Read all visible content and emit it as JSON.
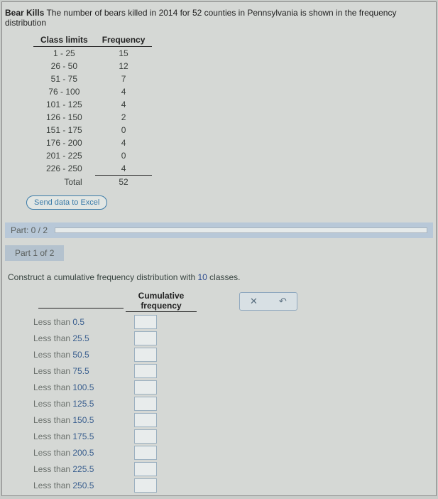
{
  "title": {
    "bold": "Bear Kills",
    "rest_a": " The number of bears killed in ",
    "year": "2014",
    "rest_b": " for ",
    "counties": "52",
    "rest_c": " counties in Pennsylvania is shown in the frequency distribution"
  },
  "freq_table": {
    "headers": [
      "Class limits",
      "Frequency"
    ],
    "rows": [
      {
        "limits": "1 - 25",
        "freq": "15"
      },
      {
        "limits": "26 - 50",
        "freq": "12"
      },
      {
        "limits": "51 - 75",
        "freq": "7"
      },
      {
        "limits": "76 - 100",
        "freq": "4"
      },
      {
        "limits": "101 - 125",
        "freq": "4"
      },
      {
        "limits": "126 - 150",
        "freq": "2"
      },
      {
        "limits": "151 - 175",
        "freq": "0"
      },
      {
        "limits": "176 - 200",
        "freq": "4"
      },
      {
        "limits": "201 - 225",
        "freq": "0"
      },
      {
        "limits": "226 - 250",
        "freq": "4"
      }
    ],
    "total_label": "Total",
    "total_value": "52"
  },
  "send_button": "Send data to Excel",
  "part_indicator": "Part: 0 / 2",
  "part_label": "Part 1 of 2",
  "instruction": {
    "text_a": "Construct a cumulative frequency distribution with ",
    "classes": "10",
    "text_b": " classes."
  },
  "cum_table": {
    "header": "Cumulative frequency",
    "rows": [
      {
        "prefix": "Less than ",
        "val": "0.5"
      },
      {
        "prefix": "Less than ",
        "val": "25.5"
      },
      {
        "prefix": "Less than ",
        "val": "50.5"
      },
      {
        "prefix": "Less than ",
        "val": "75.5"
      },
      {
        "prefix": "Less than ",
        "val": "100.5"
      },
      {
        "prefix": "Less than ",
        "val": "125.5"
      },
      {
        "prefix": "Less than ",
        "val": "150.5"
      },
      {
        "prefix": "Less than ",
        "val": "175.5"
      },
      {
        "prefix": "Less than ",
        "val": "200.5"
      },
      {
        "prefix": "Less than ",
        "val": "225.5"
      },
      {
        "prefix": "Less than ",
        "val": "250.5"
      }
    ]
  },
  "toolbox": {
    "clear": "✕",
    "reset": "↶"
  }
}
